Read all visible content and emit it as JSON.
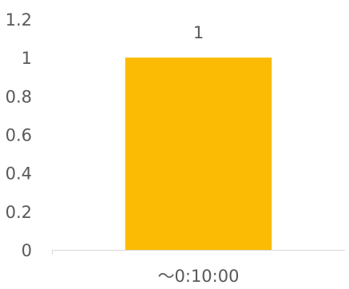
{
  "chart_data": {
    "type": "bar",
    "categories": [
      "～0:10:00"
    ],
    "values": [
      1
    ],
    "data_labels": [
      "1"
    ],
    "ylim": [
      0,
      1.2
    ],
    "yticks": [
      "0",
      "0.2",
      "0.4",
      "0.6",
      "0.8",
      "1",
      "1.2"
    ],
    "title": "",
    "xlabel": "",
    "ylabel": "",
    "grid": false,
    "legend": "none",
    "bar_color": "#FBBB04",
    "axis_color": "#D9D9D9",
    "text_color": "#595959"
  }
}
